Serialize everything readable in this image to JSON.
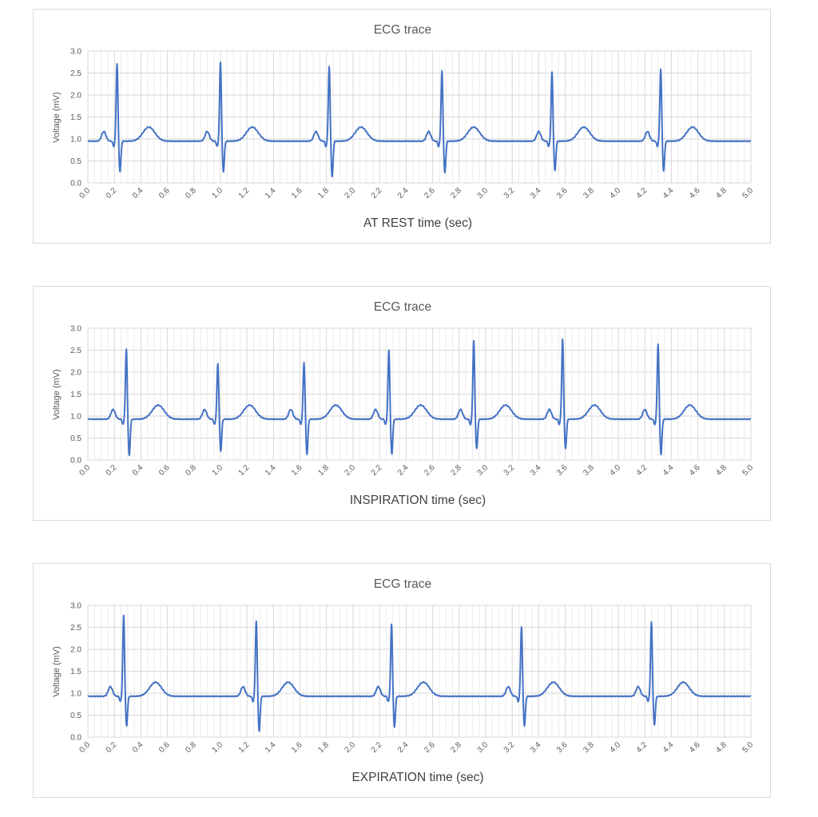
{
  "chart_data": [
    {
      "type": "line",
      "title": "ECG trace",
      "xlabel": "AT REST time (sec)",
      "ylabel": "Voltage (mV)",
      "xlim": [
        0,
        5
      ],
      "ylim": [
        0,
        3
      ],
      "xticks": [
        "0.0",
        "0.2",
        "0.4",
        "0.6",
        "0.8",
        "1.0",
        "1.2",
        "1.4",
        "1.6",
        "1.8",
        "2.0",
        "2.2",
        "2.4",
        "2.6",
        "2.8",
        "3.0",
        "3.2",
        "3.4",
        "3.6",
        "3.8",
        "4.0",
        "4.2",
        "4.4",
        "4.6",
        "4.8",
        "5.0"
      ],
      "yticks": [
        "0.0",
        "0.5",
        "1.0",
        "1.5",
        "2.0",
        "2.5",
        "3.0"
      ],
      "grid": true,
      "series_color": "#4472c4",
      "baseline": 0.95,
      "beats": [
        {
          "r_time": 0.22,
          "r_peak": 2.72,
          "s_trough": 0.3
        },
        {
          "r_time": 1.0,
          "r_peak": 2.75,
          "s_trough": 0.3
        },
        {
          "r_time": 1.82,
          "r_peak": 2.65,
          "s_trough": 0.18
        },
        {
          "r_time": 2.67,
          "r_peak": 2.55,
          "s_trough": 0.27
        },
        {
          "r_time": 3.5,
          "r_peak": 2.52,
          "s_trough": 0.32
        },
        {
          "r_time": 4.32,
          "r_peak": 2.6,
          "s_trough": 0.32
        }
      ]
    },
    {
      "type": "line",
      "title": "ECG trace",
      "xlabel": "INSPIRATION time (sec)",
      "ylabel": "Voltage (mV)",
      "xlim": [
        0,
        5
      ],
      "ylim": [
        0,
        3
      ],
      "xticks": [
        "0.0",
        "0.2",
        "0.4",
        "0.6",
        "0.8",
        "1.0",
        "1.2",
        "1.4",
        "1.6",
        "1.8",
        "2.0",
        "2.2",
        "2.4",
        "2.6",
        "2.8",
        "3.0",
        "3.2",
        "3.4",
        "3.6",
        "3.8",
        "4.0",
        "4.2",
        "4.4",
        "4.6",
        "4.8",
        "5.0"
      ],
      "yticks": [
        "0.0",
        "0.5",
        "1.0",
        "1.5",
        "2.0",
        "2.5",
        "3.0"
      ],
      "grid": true,
      "series_color": "#4472c4",
      "baseline": 0.93,
      "beats": [
        {
          "r_time": 0.29,
          "r_peak": 2.52,
          "s_trough": 0.15
        },
        {
          "r_time": 0.98,
          "r_peak": 2.2,
          "s_trough": 0.25
        },
        {
          "r_time": 1.63,
          "r_peak": 2.23,
          "s_trough": 0.18
        },
        {
          "r_time": 2.27,
          "r_peak": 2.5,
          "s_trough": 0.18
        },
        {
          "r_time": 2.91,
          "r_peak": 2.72,
          "s_trough": 0.3
        },
        {
          "r_time": 3.58,
          "r_peak": 2.75,
          "s_trough": 0.3
        },
        {
          "r_time": 4.3,
          "r_peak": 2.65,
          "s_trough": 0.17
        }
      ]
    },
    {
      "type": "line",
      "title": "ECG trace",
      "xlabel": "EXPIRATION time (sec)",
      "ylabel": "Voltage (mV)",
      "xlim": [
        0,
        5
      ],
      "ylim": [
        0,
        3
      ],
      "xticks": [
        "0.0",
        "0.2",
        "0.4",
        "0.6",
        "0.8",
        "1.0",
        "1.2",
        "1.4",
        "1.6",
        "1.8",
        "2.0",
        "2.2",
        "2.4",
        "2.6",
        "2.8",
        "3.0",
        "3.2",
        "3.4",
        "3.6",
        "3.8",
        "4.0",
        "4.2",
        "4.4",
        "4.6",
        "4.8",
        "5.0"
      ],
      "yticks": [
        "0.0",
        "0.5",
        "1.0",
        "1.5",
        "2.0",
        "2.5",
        "3.0"
      ],
      "grid": true,
      "series_color": "#4472c4",
      "baseline": 0.93,
      "beats": [
        {
          "r_time": 0.27,
          "r_peak": 2.77,
          "s_trough": 0.3
        },
        {
          "r_time": 1.27,
          "r_peak": 2.65,
          "s_trough": 0.18
        },
        {
          "r_time": 2.29,
          "r_peak": 2.57,
          "s_trough": 0.27
        },
        {
          "r_time": 3.27,
          "r_peak": 2.52,
          "s_trough": 0.3
        },
        {
          "r_time": 4.25,
          "r_peak": 2.62,
          "s_trough": 0.32
        }
      ]
    }
  ]
}
